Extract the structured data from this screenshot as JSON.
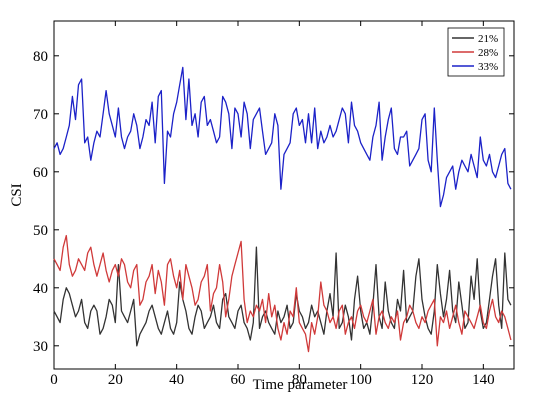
{
  "chart_data": {
    "type": "line",
    "xlabel": "Time parameter",
    "ylabel": "CSI",
    "xlim": [
      0,
      150
    ],
    "ylim": [
      26,
      86
    ],
    "xticks": [
      0,
      20,
      40,
      60,
      80,
      100,
      120,
      140
    ],
    "yticks": [
      30,
      40,
      50,
      60,
      70,
      80
    ],
    "grid": false,
    "legend_position": "top-right",
    "series": [
      {
        "name": "21%",
        "color": "#333333",
        "values": [
          36,
          35,
          34,
          38,
          40,
          39,
          37,
          35,
          36,
          38,
          34,
          33,
          36,
          37,
          36,
          32,
          33,
          35,
          38,
          37,
          34,
          44,
          36,
          35,
          34,
          36,
          38,
          30,
          32,
          33,
          34,
          36,
          37,
          35,
          33,
          32,
          34,
          36,
          33,
          32,
          34,
          41,
          38,
          36,
          33,
          32,
          35,
          37,
          36,
          33,
          34,
          35,
          37,
          34,
          33,
          38,
          39,
          35,
          34,
          33,
          36,
          37,
          34,
          33,
          31,
          34,
          47,
          33,
          35,
          36,
          34,
          33,
          32,
          36,
          34,
          35,
          37,
          33,
          34,
          39,
          36,
          35,
          33,
          34,
          37,
          35,
          36,
          34,
          32,
          36,
          39,
          35,
          46,
          33,
          34,
          37,
          35,
          31,
          38,
          42,
          36,
          33,
          34,
          32,
          37,
          44,
          35,
          33,
          41,
          36,
          34,
          33,
          38,
          36,
          43,
          34,
          35,
          36,
          42,
          45,
          38,
          35,
          33,
          32,
          36,
          44,
          39,
          35,
          38,
          43,
          36,
          34,
          41,
          37,
          33,
          34,
          42,
          38,
          45,
          36,
          33,
          34,
          38,
          42,
          45,
          37,
          33,
          46,
          38,
          37
        ]
      },
      {
        "name": "28%",
        "color": "#d03a3a",
        "values": [
          45,
          44,
          43,
          47,
          49,
          44,
          42,
          43,
          45,
          44,
          43,
          46,
          47,
          44,
          42,
          44,
          46,
          43,
          41,
          43,
          44,
          42,
          45,
          44,
          41,
          40,
          43,
          44,
          37,
          38,
          41,
          42,
          44,
          39,
          43,
          41,
          37,
          44,
          45,
          42,
          40,
          43,
          38,
          44,
          42,
          40,
          37,
          38,
          41,
          42,
          44,
          36,
          39,
          40,
          44,
          41,
          35,
          38,
          42,
          44,
          46,
          48,
          38,
          34,
          36,
          35,
          37,
          36,
          38,
          34,
          39,
          35,
          37,
          33,
          31,
          34,
          32,
          36,
          35,
          40,
          34,
          33,
          32,
          29,
          34,
          32,
          35,
          41,
          37,
          36,
          34,
          35,
          33,
          36,
          37,
          32,
          34,
          35,
          33,
          36,
          37,
          35,
          34,
          36,
          38,
          32,
          35,
          36,
          34,
          33,
          35,
          34,
          36,
          31,
          34,
          35,
          37,
          36,
          34,
          33,
          35,
          34,
          36,
          37,
          38,
          30,
          35,
          34,
          36,
          33,
          35,
          37,
          34,
          32,
          36,
          35,
          34,
          33,
          35,
          37,
          34,
          33,
          36,
          38,
          35,
          34,
          36,
          35,
          33,
          31
        ]
      },
      {
        "name": "33%",
        "color": "#1c22c8",
        "values": [
          64,
          65,
          63,
          64,
          66,
          68,
          73,
          69,
          75,
          76,
          65,
          66,
          62,
          65,
          67,
          66,
          70,
          74,
          70,
          68,
          66,
          71,
          66,
          64,
          66,
          67,
          70,
          68,
          64,
          66,
          69,
          68,
          72,
          65,
          73,
          74,
          58,
          67,
          66,
          70,
          72,
          75,
          78,
          69,
          76,
          68,
          70,
          66,
          72,
          73,
          68,
          69,
          67,
          65,
          66,
          73,
          72,
          70,
          64,
          71,
          70,
          66,
          72,
          70,
          64,
          69,
          70,
          71,
          67,
          63,
          64,
          65,
          70,
          68,
          57,
          63,
          64,
          65,
          70,
          71,
          68,
          69,
          65,
          70,
          65,
          71,
          64,
          67,
          65,
          66,
          68,
          66,
          67,
          69,
          71,
          70,
          65,
          72,
          68,
          67,
          65,
          64,
          63,
          62,
          66,
          68,
          72,
          62,
          66,
          69,
          71,
          64,
          63,
          66,
          66,
          67,
          61,
          62,
          63,
          64,
          69,
          70,
          62,
          60,
          71,
          62,
          54,
          56,
          59,
          60,
          61,
          57,
          60,
          62,
          61,
          60,
          63,
          61,
          59,
          66,
          62,
          61,
          63,
          60,
          59,
          61,
          63,
          64,
          58,
          57
        ]
      }
    ]
  }
}
